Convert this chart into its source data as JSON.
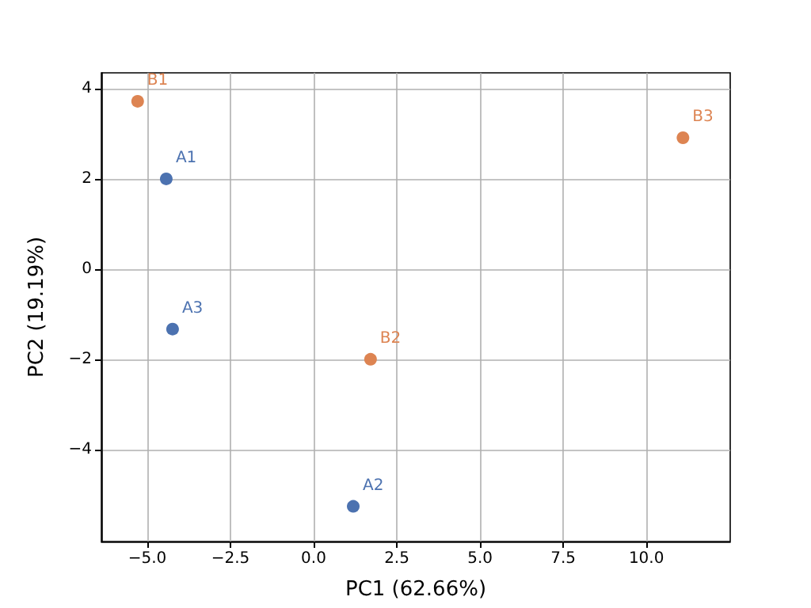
{
  "chart_data": {
    "type": "scatter",
    "xlabel": "PC1 (62.66%)",
    "ylabel": "PC2 (19.19%)",
    "xlim": [
      -6.38,
      12.52
    ],
    "ylim": [
      -6.04,
      4.35
    ],
    "xticks": [
      {
        "value": -5,
        "label": "−5.0"
      },
      {
        "value": -2.5,
        "label": "−2.5"
      },
      {
        "value": 0,
        "label": "0.0"
      },
      {
        "value": 2.5,
        "label": "2.5"
      },
      {
        "value": 5,
        "label": "5.0"
      },
      {
        "value": 7.5,
        "label": "7.5"
      },
      {
        "value": 10,
        "label": "10.0"
      }
    ],
    "yticks": [
      {
        "value": -4,
        "label": "−4"
      },
      {
        "value": -2,
        "label": "−2"
      },
      0,
      2,
      4
    ],
    "grid": true,
    "marker": "circle",
    "series": [
      {
        "color": "#4c72b0",
        "x": [
          -4.43,
          1.19,
          -4.24
        ],
        "values": [
          2.0,
          -5.26,
          -1.33
        ],
        "value_labels": [
          "A1",
          "A2",
          "A3"
        ]
      },
      {
        "color": "#dd8452",
        "x": [
          -5.29,
          1.71,
          11.1
        ],
        "values": [
          3.72,
          -2.0,
          2.91
        ],
        "value_labels": [
          "B1",
          "B2",
          "B3"
        ]
      }
    ]
  }
}
